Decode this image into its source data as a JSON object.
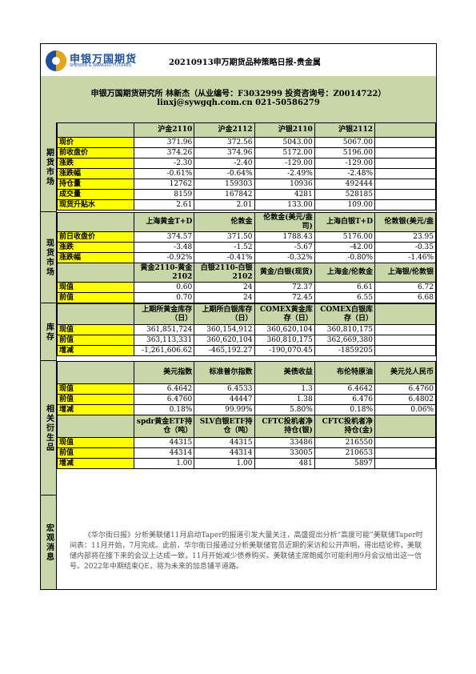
{
  "header": {
    "logo_cn": "申银万国期货",
    "logo_en": "SHENYIN & WANGUO FUTURES",
    "title": "20210913申万期货品种策略日报-贵金属"
  },
  "author": {
    "line1": "申银万国期货研究所 林新杰（从业编号：F3032999 投资咨询号：Z0014722）",
    "line2": "linxj@sywgqh.com.cn   021-50586279"
  },
  "sections": {
    "futures": "期货市场",
    "spot": "现货市场",
    "inventory": "库存",
    "derivatives": "相关衍生品",
    "macro": "宏观消息"
  },
  "futures": {
    "headers": [
      "沪金2110",
      "沪金2112",
      "沪银2110",
      "沪银2112"
    ],
    "rows": [
      {
        "label": "现价",
        "vals": [
          "371.96",
          "372.56",
          "5043.00",
          "5067.00"
        ]
      },
      {
        "label": "前收盘价",
        "vals": [
          "374.26",
          "374.96",
          "5172.00",
          "5196.00"
        ]
      },
      {
        "label": "涨跌",
        "vals": [
          "-2.30",
          "-2.40",
          "-129.00",
          "-129.00"
        ]
      },
      {
        "label": "涨跌幅",
        "vals": [
          "-0.61%",
          "-0.64%",
          "-2.49%",
          "-2.48%"
        ]
      },
      {
        "label": "持仓量",
        "vals": [
          "12762",
          "159303",
          "10936",
          "492444"
        ]
      },
      {
        "label": "成交量",
        "vals": [
          "8159",
          "167842",
          "4281",
          "528185"
        ]
      },
      {
        "label": "现货升贴水",
        "vals": [
          "2.61",
          "2.01",
          "133.00",
          "109.00"
        ]
      }
    ]
  },
  "spot1": {
    "headers": [
      "上海黄金T+D",
      "伦敦金",
      "伦敦金(美元/盎司)",
      "上海白银T+D",
      "伦敦银(美元/盎"
    ],
    "rows": [
      {
        "label": "前日收盘价",
        "vals": [
          "374.57",
          "371.50",
          "1788.43",
          "5176.00",
          "23.95"
        ]
      },
      {
        "label": "涨跌",
        "vals": [
          "-3.48",
          "-1.52",
          "-5.67",
          "-42.00",
          "-0.35"
        ]
      },
      {
        "label": "涨跌幅",
        "vals": [
          "-0.92%",
          "-0.41%",
          "-0.32%",
          "-0.80%",
          "-1.46%"
        ]
      }
    ]
  },
  "spot2": {
    "headers": [
      "黄金2110-黄金2102",
      "白银2110-白银2102",
      "黄金/白银(现货)",
      "上海金/伦敦金",
      "上海银/伦敦银"
    ],
    "rows": [
      {
        "label": "现值",
        "vals": [
          "0.60",
          "24",
          "72.37",
          "6.61",
          "6.72"
        ]
      },
      {
        "label": "前值",
        "vals": [
          "0.70",
          "24",
          "72.45",
          "6.55",
          "6.68"
        ]
      }
    ]
  },
  "inventory": {
    "headers": [
      "上期所黄金库存（日）",
      "上期所白银库存（日）",
      "COMEX黄金库存（日）",
      "COMEX白银库存（日）"
    ],
    "rows": [
      {
        "label": "现值",
        "vals": [
          "361,851,724",
          "360,154,912",
          "360,620,104",
          "360,810,175"
        ]
      },
      {
        "label": "前值",
        "vals": [
          "363,113,331",
          "360,620,104",
          "360,810,175",
          "362,669,380"
        ]
      },
      {
        "label": "增减",
        "vals": [
          "-1,261,606.62",
          "-465,192.27",
          "-190,070.45",
          "-1859205"
        ]
      }
    ]
  },
  "deriv1": {
    "headers": [
      "美元指数",
      "标准普尔指数",
      "美债收益",
      "布伦特原油",
      "美元兑人民币"
    ],
    "rows": [
      {
        "label": "现值",
        "vals": [
          "6.4642",
          "6.4533",
          "1.3",
          "6.4642",
          "6.4760"
        ]
      },
      {
        "label": "前值",
        "vals": [
          "6.4760",
          "44447",
          "1.38",
          "6.476",
          "6.4802"
        ]
      },
      {
        "label": "增减",
        "vals": [
          "0.18%",
          "99.99%",
          "5.80%",
          "0.18%",
          "0.06%"
        ]
      }
    ]
  },
  "deriv2": {
    "headers": [
      "spdr黄金ETF持仓（吨）",
      "SLV白银ETF持仓（吨）",
      "CFTC投机者净持仓(银)",
      "CFTC投机者净持仓(金)"
    ],
    "rows": [
      {
        "label": "现值",
        "vals": [
          "44315",
          "44315",
          "33486",
          "216550"
        ]
      },
      {
        "label": "前值",
        "vals": [
          "44314",
          "44314",
          "33005",
          "210653"
        ]
      },
      {
        "label": "增减",
        "vals": [
          "1.00",
          "1.00",
          "481",
          "5897"
        ]
      }
    ]
  },
  "macro_text": "《华尔街日报》分析美联储11月启动Taper的报道引发大量关注，高盛提出分析“高度可能”美联储Taper时间表：11月开始，7月完成。此前，华尔街日报通过分析美联储官员近期的采访和公开声明，得出结论称，美联储内部将在接下来的会议上达成一致，11月开始减少债券购买。美联储主席鲍威尔可能利用9月会议给出这一信号。2022年中期结束QE，将为未来的加息铺平道路。"
}
